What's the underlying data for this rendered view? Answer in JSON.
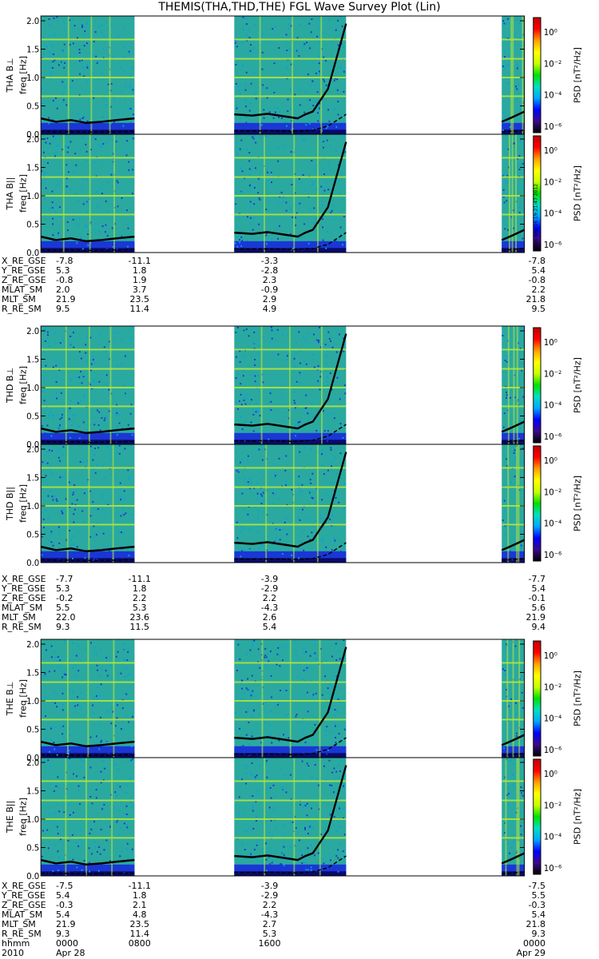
{
  "title": "THEMIS(THA,THD,THE) FGL Wave Survey Plot (Lin)",
  "colorbar": {
    "label": "PSD [nT²/Hz]",
    "ticks": [
      "10⁰",
      "10⁻²",
      "10⁻⁴",
      "10⁻⁶"
    ],
    "colors": [
      "#000000",
      "#3a0a8a",
      "#0000ff",
      "#00a8ff",
      "#00e0c0",
      "#00e000",
      "#c8ff00",
      "#ffff00",
      "#ffa000",
      "#ff0000",
      "#c00000"
    ]
  },
  "colors": {
    "background": "#2aa9a0",
    "noise_blue": "#1a37d6",
    "noise_navy": "#0a0a6a",
    "line_band": "#b8e838",
    "trace": "#000000"
  },
  "chart_data": {
    "type": "heatmap",
    "x_axis": {
      "rows": [
        {
          "label": "hhmm",
          "values": [
            "0000",
            "0800",
            "1600",
            "0000"
          ]
        },
        {
          "label": "2010",
          "values": [
            "Apr 28",
            "",
            "",
            "Apr 29"
          ]
        }
      ]
    },
    "y_ticks": [
      "0.0",
      "0.5",
      "1.0",
      "1.5",
      "2.0"
    ],
    "ylim": [
      0,
      2.0
    ],
    "ylabel": "freq [Hz]",
    "data_segments_hours": [
      [
        0,
        6.2
      ],
      [
        12.8,
        20.2
      ],
      [
        30.5,
        32.0
      ]
    ],
    "stamp": "Sun Sep 16 19:21:47 2012",
    "probes": [
      {
        "panels": [
          {
            "name": "THA B⊥",
            "ylabel": "freq [Hz]"
          },
          {
            "name": "THA B||",
            "ylabel": "freq [Hz]"
          }
        ],
        "ephemeris": {
          "labels": [
            "X_RE_GSE",
            "Y_RE_GSE",
            "Z_RE_GSE",
            "MLAT_SM",
            "MLT_SM",
            "R_RE_SM"
          ],
          "columns": [
            [
              "-7.8",
              "5.3",
              "-0.8",
              "2.0",
              "21.9",
              "9.5"
            ],
            [
              "-11.1",
              "1.8",
              "1.9",
              "3.7",
              "23.5",
              "11.4"
            ],
            [
              "-3.3",
              "-2.8",
              "2.3",
              "-0.9",
              "2.9",
              "4.9"
            ],
            [
              "-7.8",
              "5.4",
              "-0.8",
              "2.2",
              "21.8",
              "9.5"
            ]
          ]
        }
      },
      {
        "panels": [
          {
            "name": "THD B⊥",
            "ylabel": "freq [Hz]"
          },
          {
            "name": "THD B||",
            "ylabel": "freq [Hz]"
          }
        ],
        "ephemeris": {
          "labels": [
            "X_RE_GSE",
            "Y_RE_GSE",
            "Z_RE_GSE",
            "MLAT_SM",
            "MLT_SM",
            "R_RE_SM"
          ],
          "columns": [
            [
              "-7.7",
              "5.3",
              "-0.2",
              "5.5",
              "22.0",
              "9.3"
            ],
            [
              "-11.1",
              "1.8",
              "2.2",
              "5.3",
              "23.6",
              "11.5"
            ],
            [
              "-3.9",
              "-2.9",
              "2.2",
              "-4.3",
              "2.6",
              "5.4"
            ],
            [
              "-7.7",
              "5.4",
              "-0.1",
              "5.6",
              "21.9",
              "9.4"
            ]
          ]
        }
      },
      {
        "panels": [
          {
            "name": "THE B⊥",
            "ylabel": "freq [Hz]"
          },
          {
            "name": "THE B||",
            "ylabel": "freq [Hz]"
          }
        ],
        "ephemeris": {
          "labels": [
            "X_RE_GSE",
            "Y_RE_GSE",
            "Z_RE_GSE",
            "MLAT_SM",
            "MLT_SM",
            "R_RE_SM"
          ],
          "columns": [
            [
              "-7.5",
              "5.4",
              "-0.3",
              "5.4",
              "21.9",
              "9.3"
            ],
            [
              "-11.1",
              "1.8",
              "2.1",
              "4.8",
              "23.5",
              "11.4"
            ],
            [
              "-3.9",
              "-2.9",
              "2.2",
              "-4.3",
              "2.7",
              "5.3"
            ],
            [
              "-7.5",
              "5.5",
              "-0.3",
              "5.4",
              "21.8",
              "9.3"
            ]
          ]
        }
      }
    ],
    "gyro_line": {
      "hours": [
        0,
        1,
        2,
        3,
        4,
        5,
        6.2,
        12.8,
        14,
        15,
        16,
        17,
        17.5,
        18,
        19,
        20.2,
        30.5,
        31.2,
        32
      ],
      "freq_hz": [
        0.28,
        0.22,
        0.25,
        0.2,
        0.22,
        0.25,
        0.28,
        0.35,
        0.33,
        0.36,
        0.32,
        0.28,
        0.35,
        0.4,
        0.8,
        1.95,
        0.22,
        0.3,
        0.4
      ]
    }
  }
}
